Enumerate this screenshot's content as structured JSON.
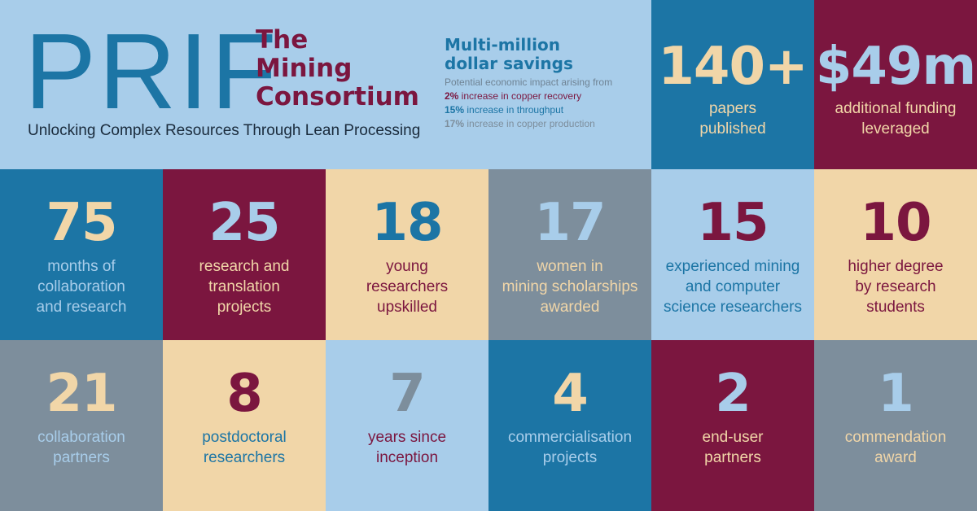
{
  "header": {
    "logo_text": "PRIF",
    "consortium_lines": [
      "The",
      "Mining",
      "Consortium"
    ],
    "tagline": "Unlocking Complex Resources Through Lean Processing"
  },
  "savings": {
    "title_lines": [
      "Multi-million",
      "dollar savings"
    ],
    "subtitle": "Potential economic impact arising from",
    "items": [
      {
        "value": "2%",
        "text": " increase in copper recovery"
      },
      {
        "value": "15%",
        "text": " increase in throughput"
      },
      {
        "value": "17%",
        "text": " increase in copper production"
      }
    ]
  },
  "colors": {
    "blue": "#1c75a5",
    "maroon": "#7b163f",
    "sand": "#f1d6a8",
    "gray": "#7d8e9c",
    "sky": "#a8cdea"
  },
  "stats_top": [
    {
      "number": "140+",
      "label": [
        "papers",
        "published"
      ]
    },
    {
      "number": "$49m",
      "label": [
        "additional funding",
        "leveraged"
      ]
    }
  ],
  "stats_row1": [
    {
      "number": "75",
      "label": [
        "months of",
        "collaboration",
        "and research"
      ]
    },
    {
      "number": "25",
      "label": [
        "research and",
        "translation",
        "projects"
      ]
    },
    {
      "number": "18",
      "label": [
        "young",
        "researchers",
        "upskilled"
      ]
    },
    {
      "number": "17",
      "label": [
        "women in",
        "mining scholarships",
        "awarded"
      ]
    },
    {
      "number": "15",
      "label": [
        "experienced mining",
        "and computer",
        "science researchers"
      ]
    },
    {
      "number": "10",
      "label": [
        "higher degree",
        "by research",
        "students"
      ]
    }
  ],
  "stats_row2": [
    {
      "number": "21",
      "label": [
        "collaboration",
        "partners"
      ]
    },
    {
      "number": "8",
      "label": [
        "postdoctoral",
        "researchers"
      ]
    },
    {
      "number": "7",
      "label": [
        "years since",
        "inception"
      ]
    },
    {
      "number": "4",
      "label": [
        "commercialisation",
        "projects"
      ]
    },
    {
      "number": "2",
      "label": [
        "end-user",
        "partners"
      ]
    },
    {
      "number": "1",
      "label": [
        "commendation",
        "award"
      ]
    }
  ]
}
